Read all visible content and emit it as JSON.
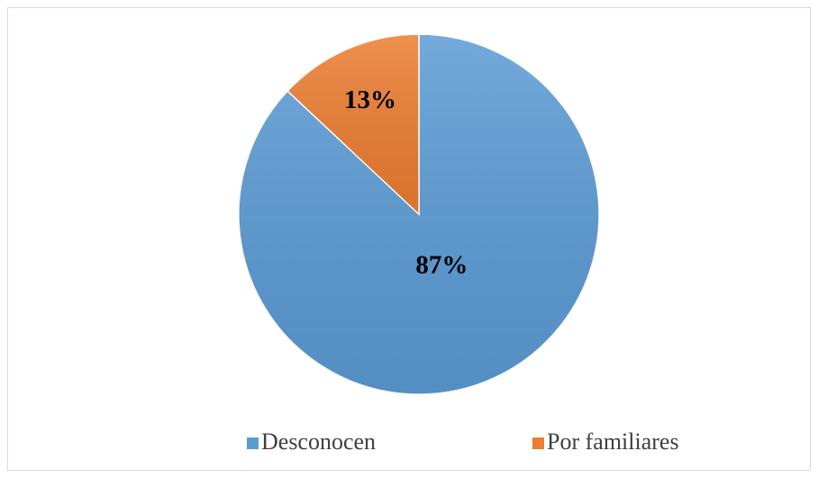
{
  "chart_data": {
    "type": "pie",
    "categories": [
      "Desconocen",
      "Por familiares"
    ],
    "values": [
      87,
      13
    ],
    "value_labels": [
      "87%",
      "13%"
    ],
    "colors": [
      "#5b9bd5",
      "#ed7d31"
    ],
    "legend": "bottom"
  }
}
